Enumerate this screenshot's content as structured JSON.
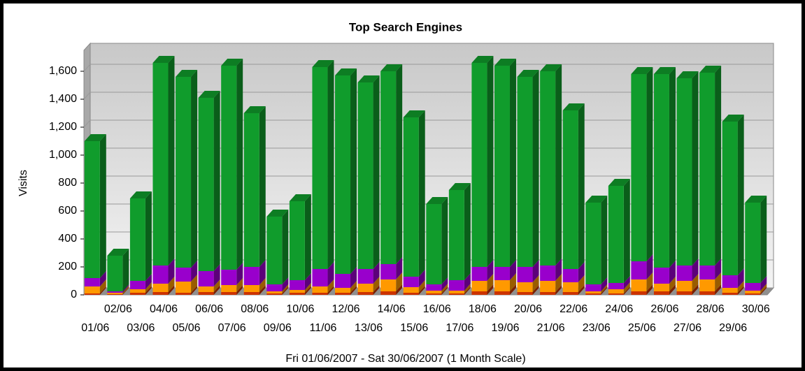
{
  "chart_data": {
    "type": "bar",
    "stacked": true,
    "three_d": true,
    "title": "Top Search Engines",
    "ylabel": "Visits",
    "xlabel": "Fri 01/06/2007 - Sat 30/06/2007 (1 Month Scale)",
    "categories": [
      "01/06",
      "02/06",
      "03/06",
      "04/06",
      "05/06",
      "06/06",
      "07/06",
      "08/06",
      "09/06",
      "10/06",
      "11/06",
      "12/06",
      "13/06",
      "14/06",
      "15/06",
      "16/06",
      "17/06",
      "18/06",
      "19/06",
      "20/06",
      "21/06",
      "22/06",
      "23/06",
      "24/06",
      "25/06",
      "26/06",
      "27/06",
      "28/06",
      "29/06",
      "30/06"
    ],
    "series": [
      {
        "color": "#cc3300",
        "values": [
          10,
          5,
          15,
          20,
          15,
          20,
          20,
          20,
          10,
          15,
          15,
          15,
          20,
          25,
          15,
          10,
          10,
          25,
          25,
          20,
          20,
          20,
          10,
          10,
          25,
          25,
          25,
          25,
          15,
          10
        ]
      },
      {
        "color": "#ff9900",
        "values": [
          50,
          10,
          25,
          60,
          80,
          40,
          50,
          50,
          15,
          20,
          45,
          35,
          60,
          85,
          40,
          20,
          20,
          75,
          80,
          70,
          80,
          70,
          15,
          30,
          85,
          55,
          75,
          85,
          35,
          20
        ]
      },
      {
        "color": "#9900cc",
        "values": [
          60,
          10,
          60,
          130,
          100,
          110,
          110,
          130,
          50,
          70,
          125,
          100,
          105,
          110,
          75,
          45,
          75,
          100,
          95,
          110,
          110,
          95,
          50,
          45,
          130,
          115,
          110,
          100,
          90,
          55
        ]
      },
      {
        "color": "#109c2c",
        "values": [
          980,
          255,
          590,
          1450,
          1365,
          1240,
          1460,
          1100,
          485,
          565,
          1445,
          1420,
          1335,
          1380,
          1140,
          575,
          645,
          1460,
          1440,
          1360,
          1390,
          1135,
          585,
          695,
          1340,
          1385,
          1340,
          1380,
          1100,
          575
        ]
      }
    ],
    "ylim": [
      0,
      1750
    ],
    "yticks": [
      0,
      200,
      400,
      600,
      800,
      {
        "value": 1000,
        "label": "1,000"
      },
      {
        "value": 1200,
        "label": "1,200"
      },
      {
        "value": 1400,
        "label": "1,400"
      },
      {
        "value": 1600,
        "label": "1,600"
      }
    ],
    "grid": true
  }
}
